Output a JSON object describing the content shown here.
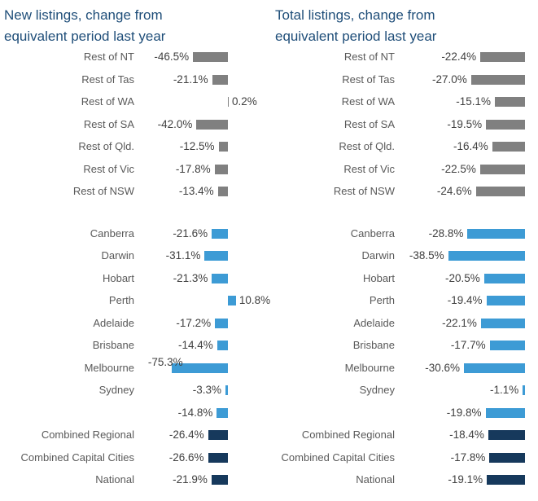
{
  "colors": {
    "rest_bar": "#808080",
    "capital_bar": "#3D9BD5",
    "combined_bar": "#16395C",
    "title_text": "#1F4E79",
    "category_text": "#595959",
    "value_text": "#404040",
    "background": "#FFFFFF"
  },
  "chart_data": [
    {
      "id": "new-listings",
      "type": "bar",
      "orientation": "horizontal",
      "title": "New listings, change from equivalent period last year",
      "title_line1": "New listings, change from",
      "title_line2": "equivalent period last year",
      "legend": "none",
      "gridlines": false,
      "axis_labels": "hidden",
      "data_labels": "outside-end",
      "unit": "%",
      "xlim": [
        -80,
        15
      ],
      "categories": [
        "Rest of NT",
        "Rest of Tas",
        "Rest of WA",
        "Rest of SA",
        "Rest of Qld.",
        "Rest of Vic",
        "Rest of NSW",
        "Canberra",
        "Darwin",
        "Hobart",
        "Perth",
        "Adelaide",
        "Brisbane",
        "Melbourne",
        "Sydney",
        "",
        "Combined Regional",
        "Combined Capital Cities",
        "National"
      ],
      "values": [
        -46.5,
        -21.1,
        0.2,
        -42.0,
        -12.5,
        -17.8,
        -13.4,
        -21.6,
        -31.1,
        -21.3,
        10.8,
        -17.2,
        -14.4,
        -75.3,
        -3.3,
        -14.8,
        -26.4,
        -26.6,
        -21.9
      ],
      "value_labels": [
        "-46.5%",
        "-21.1%",
        "0.2%",
        "-42.0%",
        "-12.5%",
        "-17.8%",
        "-13.4%",
        "-21.6%",
        "-31.1%",
        "-21.3%",
        "10.8%",
        "-17.2%",
        "-14.4%",
        "-75.3%",
        "-3.3%",
        "-14.8%",
        "-26.4%",
        "-26.6%",
        "-21.9%"
      ],
      "groups": [
        "rest",
        "rest",
        "rest",
        "rest",
        "rest",
        "rest",
        "rest",
        "capital",
        "capital",
        "capital",
        "capital",
        "capital",
        "capital",
        "capital",
        "capital",
        "capital",
        "combined",
        "combined",
        "combined"
      ]
    },
    {
      "id": "total-listings",
      "type": "bar",
      "orientation": "horizontal",
      "title": "Total listings, change from equivalent period last year",
      "title_line1": "Total listings, change from",
      "title_line2": "equivalent period last year",
      "legend": "none",
      "gridlines": false,
      "axis_labels": "hidden",
      "data_labels": "outside-end",
      "unit": "%",
      "xlim": [
        -40,
        5
      ],
      "categories": [
        "Rest of NT",
        "Rest of Tas",
        "Rest of WA",
        "Rest of SA",
        "Rest of Qld.",
        "Rest of Vic",
        "Rest of NSW",
        "Canberra",
        "Darwin",
        "Hobart",
        "Perth",
        "Adelaide",
        "Brisbane",
        "Melbourne",
        "Sydney",
        "",
        "Combined Regional",
        "Combined Capital Cities",
        "National"
      ],
      "values": [
        -22.4,
        -27.0,
        -15.1,
        -19.5,
        -16.4,
        -22.5,
        -24.6,
        -28.8,
        -38.5,
        -20.5,
        -19.4,
        -22.1,
        -17.7,
        -30.6,
        -1.1,
        -19.8,
        -18.4,
        -17.8,
        -19.1
      ],
      "value_labels": [
        "-22.4%",
        "-27.0%",
        "-15.1%",
        "-19.5%",
        "-16.4%",
        "-22.5%",
        "-24.6%",
        "-28.8%",
        "-38.5%",
        "-20.5%",
        "-19.4%",
        "-22.1%",
        "-17.7%",
        "-30.6%",
        "-1.1%",
        "-19.8%",
        "-18.4%",
        "-17.8%",
        "-19.1%"
      ],
      "groups": [
        "rest",
        "rest",
        "rest",
        "rest",
        "rest",
        "rest",
        "rest",
        "capital",
        "capital",
        "capital",
        "capital",
        "capital",
        "capital",
        "capital",
        "capital",
        "capital",
        "combined",
        "combined",
        "combined"
      ]
    }
  ]
}
